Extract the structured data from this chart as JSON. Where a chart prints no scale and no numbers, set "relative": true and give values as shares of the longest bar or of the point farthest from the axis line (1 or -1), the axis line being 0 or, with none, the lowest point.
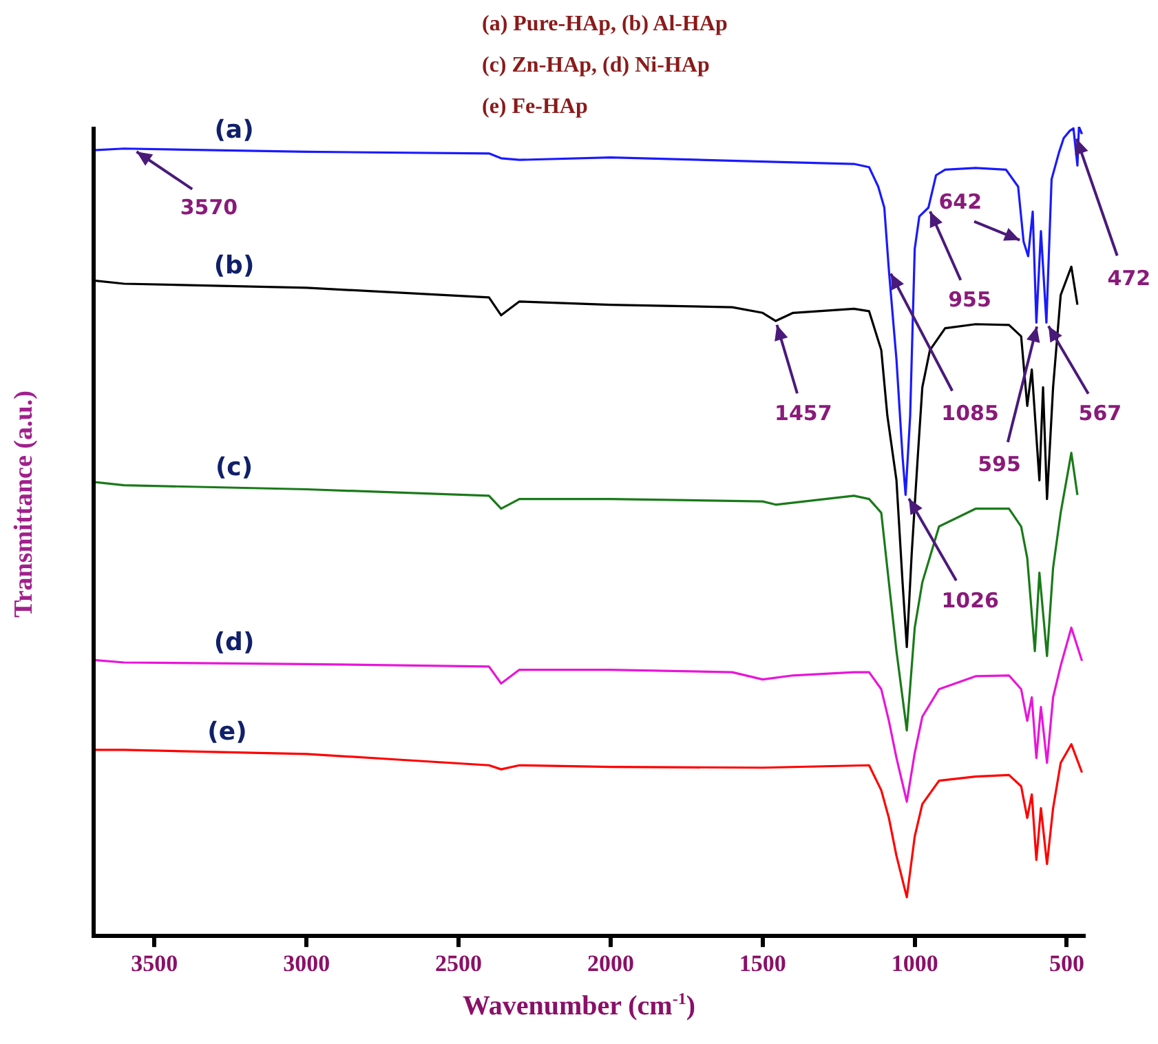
{
  "chart_data": {
    "type": "line",
    "xlabel": "Wavenumber (cm$^{-1}$)",
    "ylabel": "Transmittance (a.u.)",
    "relative": true,
    "xlim": [
      3700,
      440
    ],
    "xticks": [
      3500,
      3000,
      2500,
      2000,
      1500,
      1000,
      500
    ],
    "grid": false,
    "legend": false,
    "marker": "none",
    "line_style": "solid",
    "series": [
      {
        "name": "(a)",
        "color": "#1a1aff",
        "x": [
          3700,
          3600,
          3000,
          2400,
          2360,
          2300,
          2000,
          1500,
          1200,
          1150,
          1120,
          1100,
          1085,
          1060,
          1040,
          1030,
          1015,
          1000,
          985,
          955,
          930,
          900,
          800,
          700,
          660,
          642,
          627,
          612,
          600,
          585,
          567,
          550,
          525,
          510,
          490,
          478,
          465,
          460,
          450
        ],
        "values": [
          0.971,
          0.973,
          0.969,
          0.967,
          0.961,
          0.959,
          0.962,
          0.957,
          0.954,
          0.95,
          0.926,
          0.9,
          0.823,
          0.712,
          0.592,
          0.545,
          0.643,
          0.849,
          0.889,
          0.9,
          0.94,
          0.947,
          0.949,
          0.947,
          0.926,
          0.858,
          0.84,
          0.895,
          0.758,
          0.871,
          0.758,
          0.935,
          0.969,
          0.986,
          0.995,
          0.998,
          0.952,
          1.0,
          0.991
        ]
      },
      {
        "name": "(b)",
        "color": "#000000",
        "x": [
          3700,
          3600,
          3000,
          2400,
          2360,
          2300,
          2000,
          1600,
          1500,
          1457,
          1400,
          1200,
          1150,
          1110,
          1090,
          1060,
          1040,
          1026,
          1010,
          990,
          975,
          950,
          900,
          800,
          690,
          650,
          630,
          615,
          590,
          578,
          565,
          545,
          520,
          485,
          465
        ],
        "values": [
          0.81,
          0.806,
          0.801,
          0.789,
          0.767,
          0.784,
          0.78,
          0.777,
          0.77,
          0.76,
          0.77,
          0.775,
          0.772,
          0.724,
          0.643,
          0.563,
          0.437,
          0.357,
          0.472,
          0.592,
          0.678,
          0.724,
          0.751,
          0.756,
          0.755,
          0.741,
          0.655,
          0.7,
          0.563,
          0.678,
          0.54,
          0.678,
          0.792,
          0.827,
          0.78
        ]
      },
      {
        "name": "(c)",
        "color": "#1a7a1a",
        "x": [
          3700,
          3600,
          3000,
          2400,
          2360,
          2300,
          2000,
          1500,
          1457,
          1200,
          1150,
          1110,
          1085,
          1060,
          1026,
          1000,
          975,
          920,
          800,
          690,
          650,
          630,
          605,
          590,
          565,
          545,
          520,
          485,
          465
        ],
        "values": [
          0.561,
          0.557,
          0.552,
          0.544,
          0.528,
          0.54,
          0.54,
          0.537,
          0.533,
          0.544,
          0.54,
          0.523,
          0.437,
          0.352,
          0.254,
          0.381,
          0.437,
          0.506,
          0.528,
          0.528,
          0.506,
          0.467,
          0.352,
          0.449,
          0.346,
          0.455,
          0.523,
          0.597,
          0.545
        ]
      },
      {
        "name": "(d)",
        "color": "#e815d8",
        "x": [
          3700,
          3600,
          3000,
          2400,
          2360,
          2300,
          2000,
          1600,
          1500,
          1400,
          1200,
          1150,
          1110,
          1085,
          1060,
          1026,
          1000,
          975,
          920,
          800,
          690,
          650,
          630,
          615,
          600,
          585,
          565,
          545,
          520,
          485,
          450
        ],
        "values": [
          0.341,
          0.338,
          0.336,
          0.333,
          0.312,
          0.329,
          0.329,
          0.326,
          0.317,
          0.322,
          0.326,
          0.326,
          0.305,
          0.266,
          0.22,
          0.166,
          0.226,
          0.271,
          0.305,
          0.321,
          0.322,
          0.305,
          0.266,
          0.295,
          0.22,
          0.283,
          0.214,
          0.295,
          0.334,
          0.381,
          0.34
        ]
      },
      {
        "name": "(e)",
        "color": "#ff0000",
        "x": [
          3700,
          3600,
          3000,
          2700,
          2400,
          2360,
          2300,
          2000,
          1500,
          1150,
          1110,
          1085,
          1060,
          1026,
          1000,
          975,
          920,
          800,
          690,
          650,
          630,
          615,
          600,
          585,
          565,
          545,
          520,
          485,
          450
        ],
        "values": [
          0.23,
          0.23,
          0.225,
          0.218,
          0.211,
          0.206,
          0.211,
          0.209,
          0.208,
          0.211,
          0.18,
          0.146,
          0.099,
          0.048,
          0.123,
          0.163,
          0.192,
          0.197,
          0.199,
          0.185,
          0.146,
          0.175,
          0.094,
          0.158,
          0.089,
          0.158,
          0.214,
          0.237,
          0.202
        ]
      }
    ],
    "annotations": [
      "(a) Pure-HAp, (b) Al-HAp",
      "(c) Zn-HAp, (d) Ni-HAp",
      "(e) Fe-HAp",
      {
        "text": "3570",
        "x": 3570,
        "y": 0.972
      },
      {
        "text": "1457",
        "x": 1457,
        "y": 0.76
      },
      {
        "text": "1085",
        "x": 1085,
        "y": 0.823
      },
      {
        "text": "955",
        "x": 955,
        "y": 0.9
      },
      {
        "text": "642",
        "x": 642,
        "y": 0.858
      },
      {
        "text": "595",
        "x": 595,
        "y": 0.758
      },
      {
        "text": "567",
        "x": 567,
        "y": 0.758
      },
      {
        "text": "472",
        "x": 472,
        "y": 0.99
      },
      {
        "text": "1026",
        "x": 1026,
        "y": 0.545
      }
    ]
  }
}
